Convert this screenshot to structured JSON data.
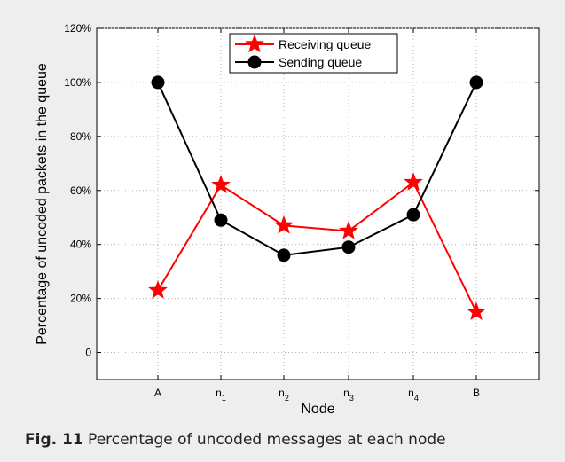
{
  "caption": {
    "label": "Fig. 11",
    "text": " Percentage of uncoded messages at each node"
  },
  "chart_data": {
    "type": "line",
    "categories": [
      {
        "base": "A",
        "sub": ""
      },
      {
        "base": "n",
        "sub": "1"
      },
      {
        "base": "n",
        "sub": "2"
      },
      {
        "base": "n",
        "sub": "3"
      },
      {
        "base": "n",
        "sub": "4"
      },
      {
        "base": "B",
        "sub": ""
      }
    ],
    "series": [
      {
        "name": "Receiving queue",
        "color": "#ff0000",
        "marker": "star",
        "values": [
          23,
          62,
          47,
          45,
          63,
          15
        ]
      },
      {
        "name": "Sending queue",
        "color": "#000000",
        "marker": "circle",
        "values": [
          100,
          49,
          36,
          39,
          51,
          100
        ]
      }
    ],
    "xlabel": "Node",
    "ylabel": "Percentage of uncoded packets in the queue",
    "ylim": [
      -10,
      120
    ],
    "yticks": [
      0,
      20,
      40,
      60,
      80,
      100,
      120
    ],
    "ytick_labels": [
      "0",
      "20%",
      "40%",
      "60%",
      "80%",
      "100%",
      "120%"
    ],
    "grid": true,
    "legend_position": "top-center"
  }
}
